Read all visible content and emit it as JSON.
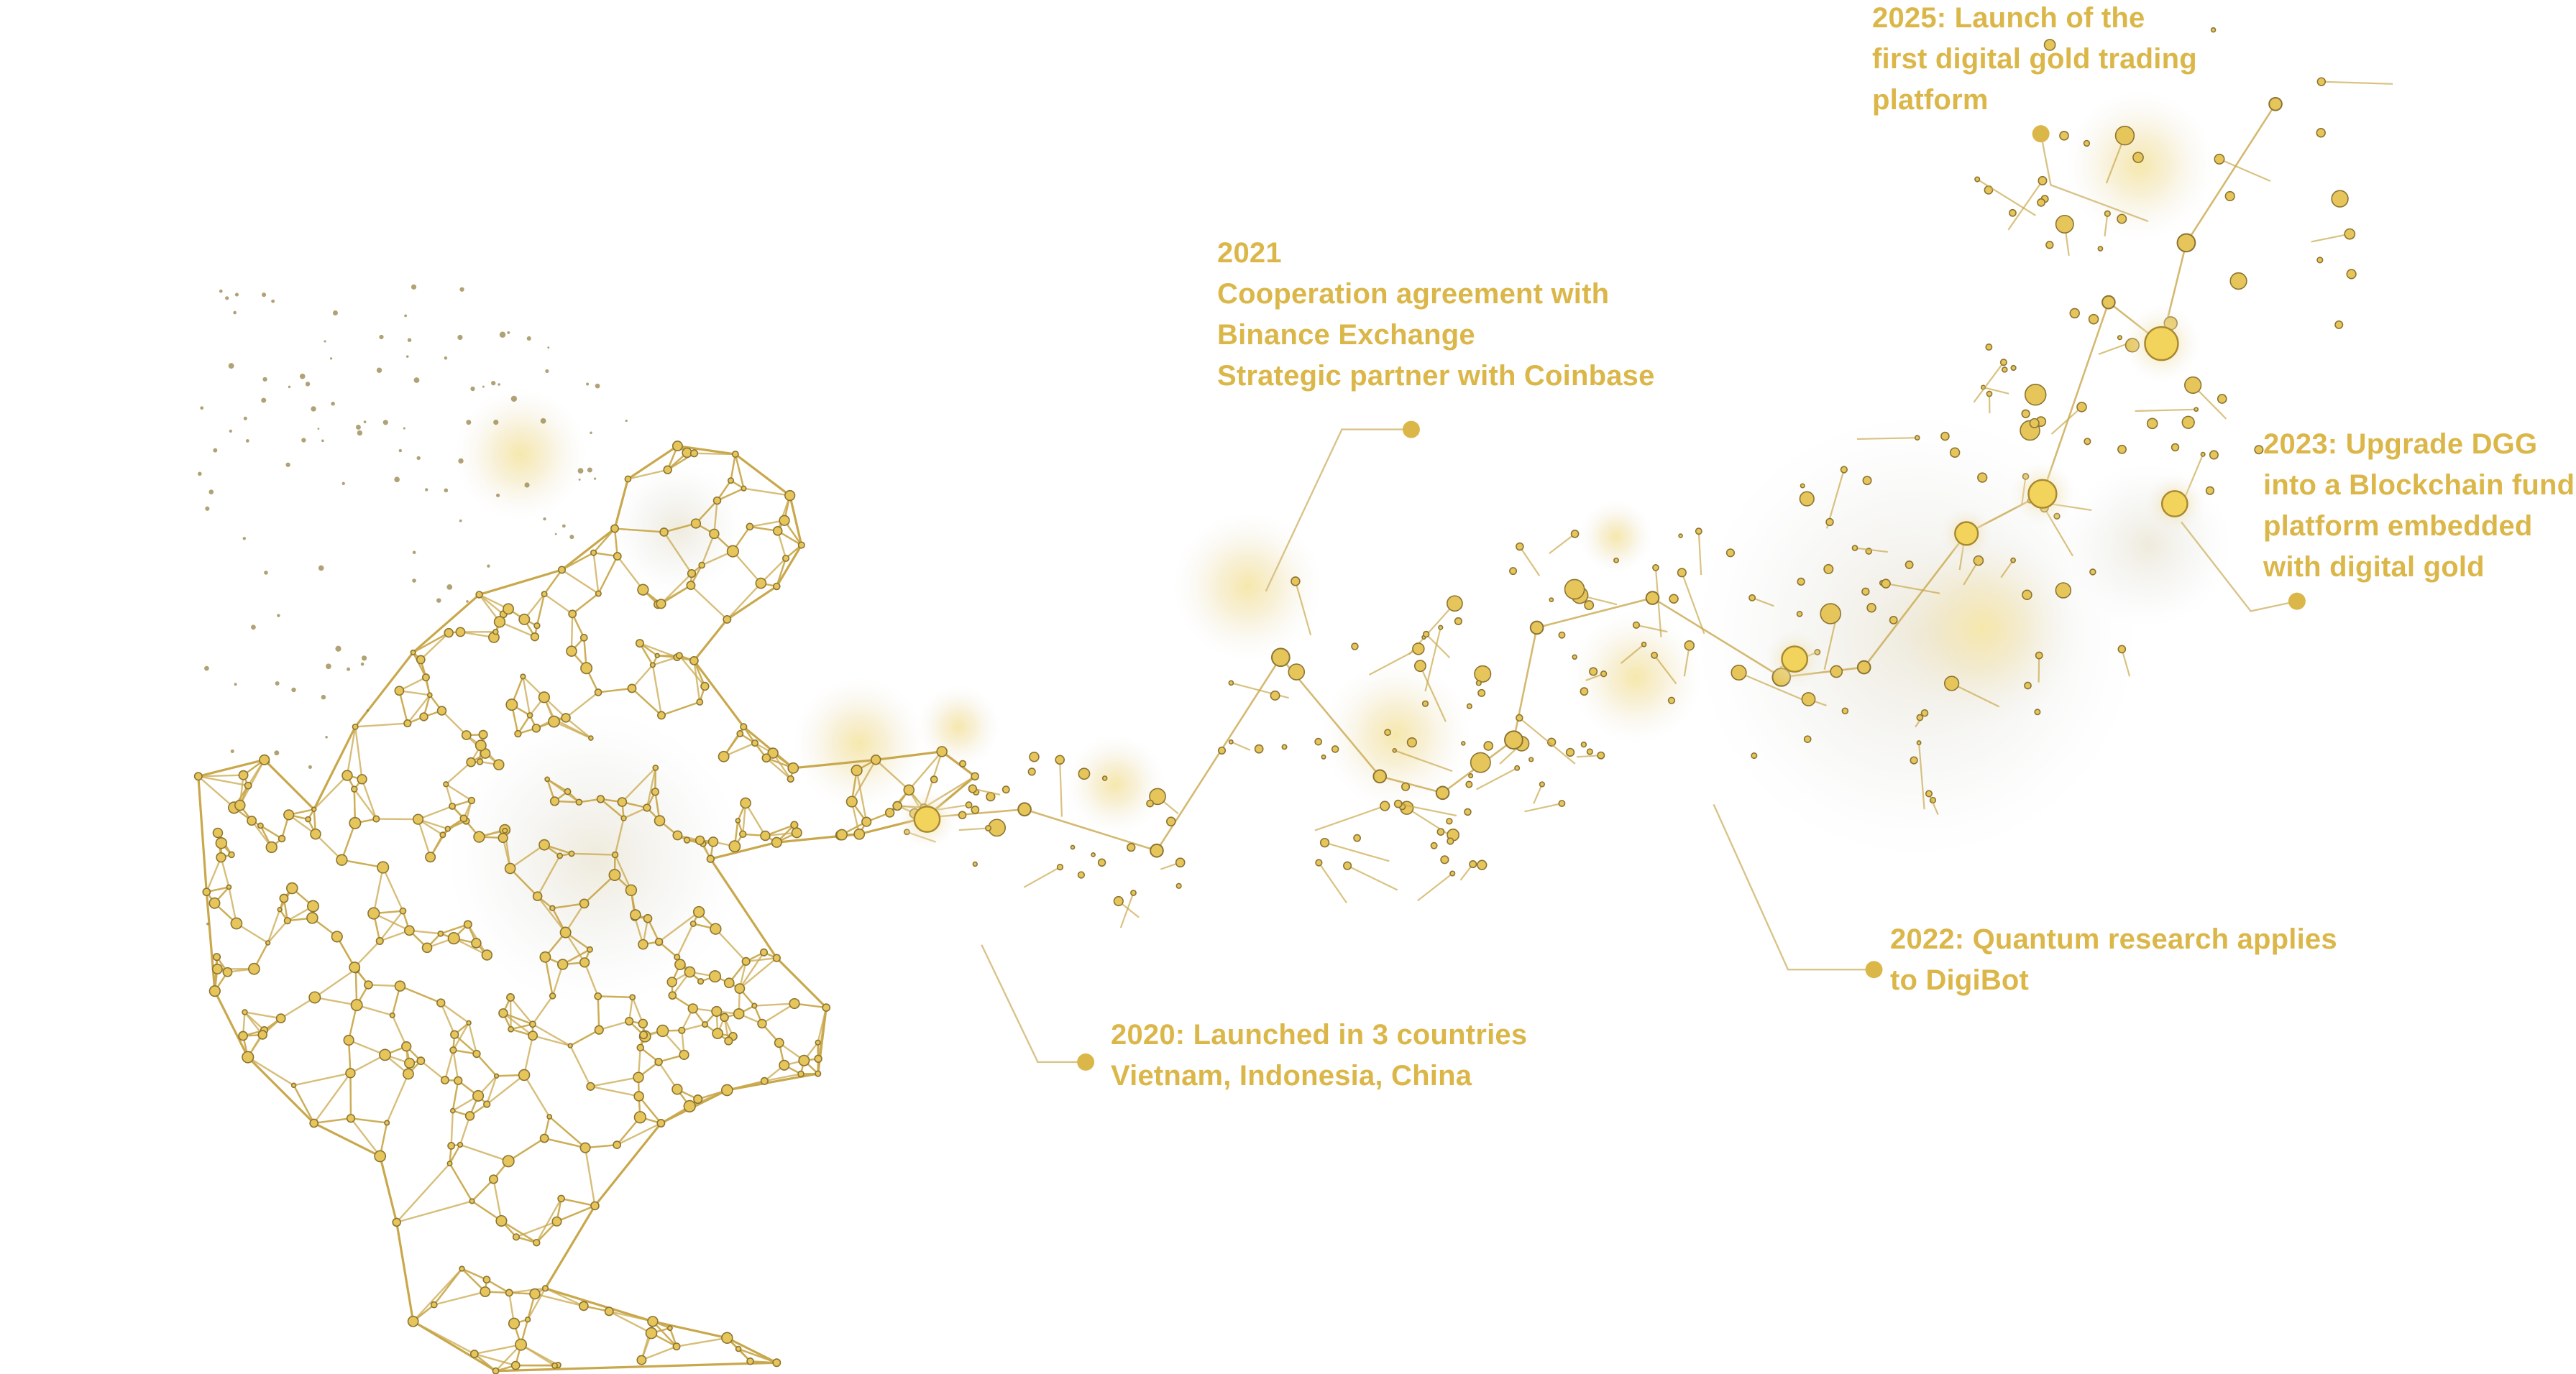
{
  "colors": {
    "accent": "#dbb74a",
    "line": "#c9a84c",
    "node_fill": "#e6c65a",
    "node_stroke": "#8c7432",
    "glow": "#f4e3a0"
  },
  "figure": {
    "description_icon": "network-human-figure-icon"
  },
  "milestones": [
    {
      "id": "2025",
      "lines": [
        "2025: Launch of the",
        "first digital gold trading",
        "platform"
      ]
    },
    {
      "id": "2021",
      "lines": [
        "2021",
        "Cooperation agreement with",
        "Binance Exchange",
        "Strategic partner with Coinbase"
      ]
    },
    {
      "id": "2023",
      "lines": [
        "2023: Upgrade DGG",
        "into a Blockchain fund",
        "platform embedded",
        "with digital gold"
      ]
    },
    {
      "id": "2022",
      "lines": [
        "2022: Quantum research applies",
        "to DigiBot"
      ]
    },
    {
      "id": "2020",
      "lines": [
        "2020: Launched in 3 countries",
        "Vietnam, Indonesia, China"
      ]
    }
  ]
}
